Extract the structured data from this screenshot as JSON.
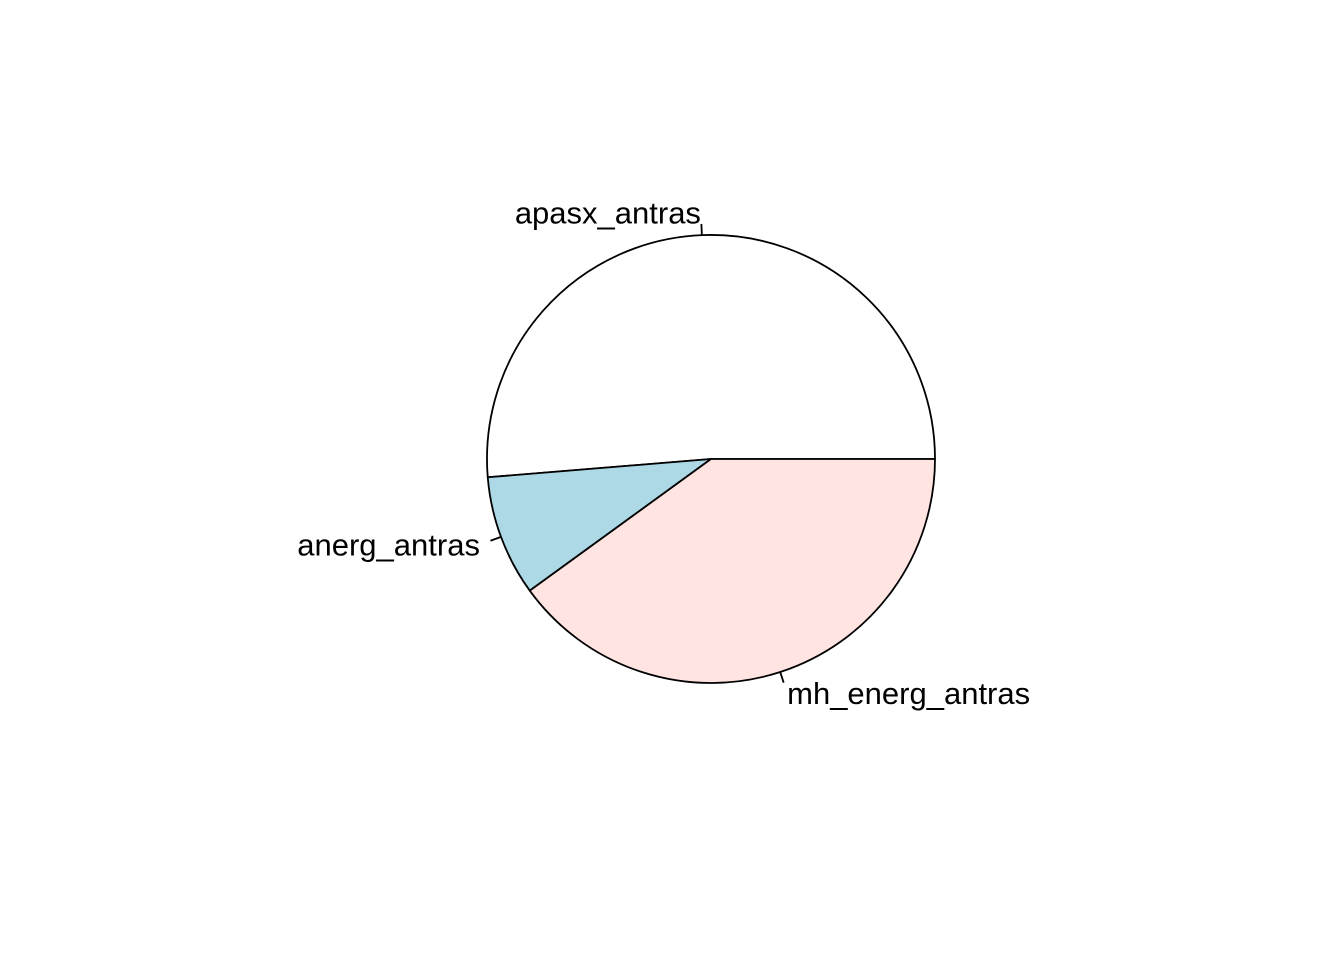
{
  "figure": {
    "background_color": "#FFFFFF"
  },
  "chart_data": {
    "type": "pie",
    "title": "",
    "legend": "none",
    "start_angle_deg": 0,
    "direction": "counterclockwise",
    "border_color": "#000000",
    "label_color": "#000000",
    "slices": [
      {
        "label": "apasx_antras",
        "value": 51.3,
        "angle_deg": 184.7,
        "color": "#FFFFFF"
      },
      {
        "label": "anerg_antras",
        "value": 8.7,
        "angle_deg": 31.3,
        "color": "#ADD8E6"
      },
      {
        "label": "mh_energ_antras",
        "value": 40.0,
        "angle_deg": 144.0,
        "color": "#FFE4E1"
      }
    ],
    "values_unit": "percent (estimated from slice angles)"
  }
}
